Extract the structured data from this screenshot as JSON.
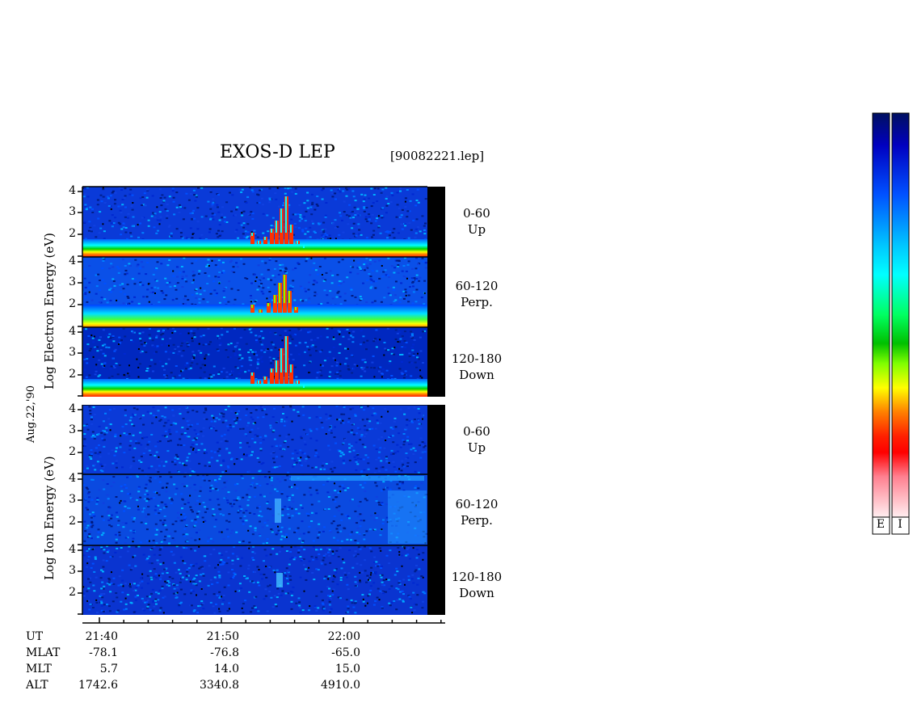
{
  "header": {
    "title": "EXOS-D LEP",
    "file": "[90082221.lep]"
  },
  "axes": {
    "electron_ylabel": "Log   Electron   Energy (eV)",
    "ion_ylabel": "Log   Ion   Energy (eV)",
    "date_label": "Aug.22,'90",
    "y_ticks": [
      "4",
      "3",
      "2"
    ]
  },
  "panels": [
    {
      "group": "electron",
      "range": "0-60",
      "dir": "Up"
    },
    {
      "group": "electron",
      "range": "60-120",
      "dir": "Perp."
    },
    {
      "group": "electron",
      "range": "120-180",
      "dir": "Down"
    },
    {
      "group": "ion",
      "range": "0-60",
      "dir": "Up"
    },
    {
      "group": "ion",
      "range": "60-120",
      "dir": "Perp."
    },
    {
      "group": "ion",
      "range": "120-180",
      "dir": "Down"
    }
  ],
  "info": {
    "labels": [
      "UT",
      "MLAT",
      "MLT",
      "ALT"
    ],
    "columns": [
      {
        "ut": "21:40",
        "mlat": "-78.1",
        "mlt": "5.7",
        "alt": "1742.6"
      },
      {
        "ut": "21:50",
        "mlat": "-76.8",
        "mlt": "14.0",
        "alt": "3340.8"
      },
      {
        "ut": "22:00",
        "mlat": "-65.0",
        "mlt": "15.0",
        "alt": "4910.0"
      }
    ]
  },
  "colorbars": [
    {
      "label": "E"
    },
    {
      "label": "I"
    }
  ],
  "colors": {
    "spectrum": [
      "#ffe8ee",
      "#ff9aa8",
      "#ff0000",
      "#ff8000",
      "#ffff00",
      "#00c000",
      "#00ffff",
      "#0080ff",
      "#0000ff",
      "#001060"
    ]
  },
  "chart_data": {
    "type": "heatmap",
    "title": "EXOS-D LEP",
    "xlabel": "UT",
    "x_ticks": [
      "21:40",
      "21:50",
      "22:00"
    ],
    "ylabel": "Log Energy (eV)",
    "y_ticks": [
      4,
      3,
      2
    ],
    "series": [
      {
        "name": "Electron 0-60 Up"
      },
      {
        "name": "Electron 60-120 Perp."
      },
      {
        "name": "Electron 120-180 Down"
      },
      {
        "name": "Ion 0-60 Up"
      },
      {
        "name": "Ion 60-120 Perp."
      },
      {
        "name": "Ion 120-180 Down"
      }
    ]
  }
}
